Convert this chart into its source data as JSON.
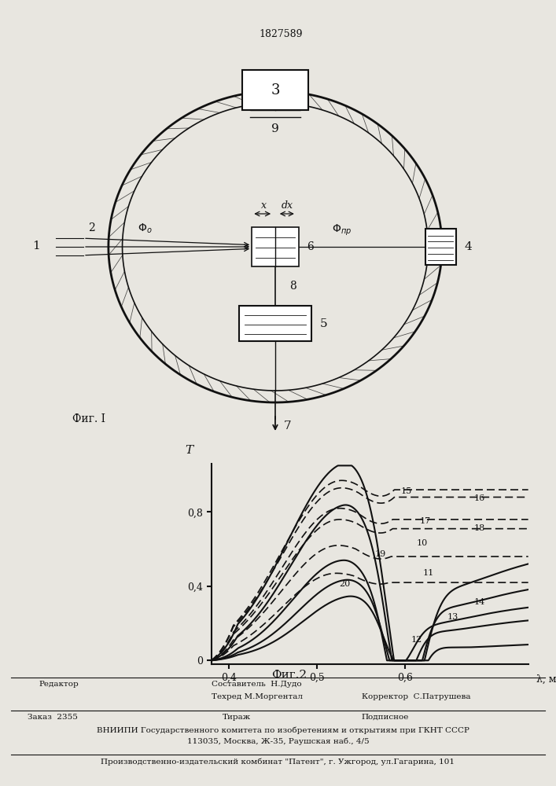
{
  "patent_number": "1827589",
  "fig1_label": "Фиг. I",
  "fig2_label": "Фиг.2",
  "bg_color": "#e8e6e0",
  "line_color": "#111111",
  "graph_xtick_labels": [
    "0,4",
    "0,5",
    "0,6"
  ],
  "graph_xtick_vals": [
    0.4,
    0.5,
    0.6
  ],
  "graph_ytick_labels": [
    "0",
    "0,4",
    "0,8"
  ],
  "graph_ytick_vals": [
    0.0,
    0.4,
    0.8
  ],
  "graph_xlabel": "λ, мкм",
  "graph_ylabel": "T",
  "footer1a": "Редактор",
  "footer1b": "Составитель  Н.Дудо",
  "footer1c": "Техред М.Моргентал",
  "footer1d": "Корректор  С.Патрушева",
  "footer2a": "Заказ  2355",
  "footer2b": "Тираж",
  "footer2c": "Подписное",
  "footer3": "    ВНИИПИ Государственного комитета по изобретениям и открытиям при ГКНТ СССР",
  "footer4": "113035, Москва, Ж-35, Раушская наб., 4/5",
  "footer5": "Производственно-издательский комбинат \"Патент\", г. Ужгород, ул.Гагарина, 101"
}
